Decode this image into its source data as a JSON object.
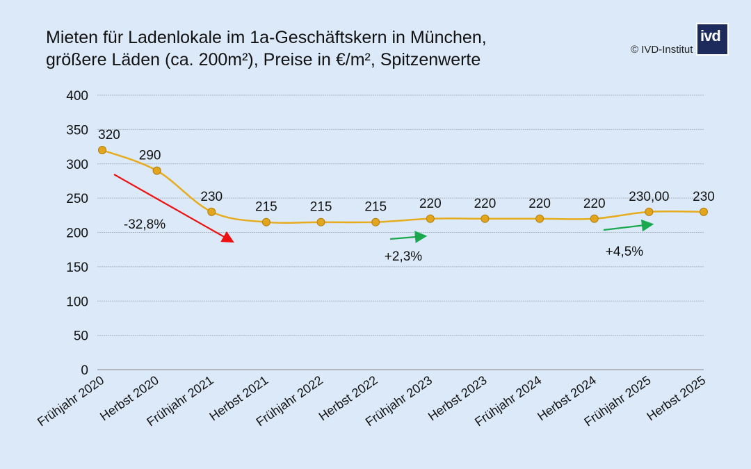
{
  "chart_data": {
    "type": "line",
    "title_line1": "Mieten für Ladenlokale im 1a-Geschäftskern in München,",
    "title_line2": "größere Läden (ca. 200m²), Preise in €/m², Spitzenwerte",
    "source": "© IVD-Institut",
    "logo_text": "ivd",
    "categories": [
      "Frühjahr 2020",
      "Herbst 2020",
      "Frühjahr 2021",
      "Herbst 2021",
      "Frühjahr 2022",
      "Herbst 2022",
      "Frühjahr 2023",
      "Herbst 2023",
      "Frühjahr 2024",
      "Herbst 2024",
      "Frühjahr 2025",
      "Herbst 2025"
    ],
    "values": [
      320,
      290,
      230,
      215,
      215,
      215,
      220,
      220,
      220,
      220,
      230,
      230
    ],
    "data_labels": [
      "320",
      "290",
      "230",
      "215",
      "215",
      "215",
      "220",
      "220",
      "220",
      "220",
      "230,00",
      "230"
    ],
    "ylim": [
      0,
      400
    ],
    "yticks": [
      0,
      50,
      100,
      150,
      200,
      250,
      300,
      350,
      400
    ],
    "grid": true,
    "line_color": "#e6ac1e",
    "marker_color": "#e3a51d",
    "annotations": [
      {
        "text": "-32,8%",
        "color": "#ee1111",
        "direction": "down",
        "from": "Frühjahr 2020",
        "to": "Herbst 2021"
      },
      {
        "text": "+2,3%",
        "color": "#1aa84f",
        "direction": "up",
        "from": "Herbst 2022",
        "to": "Frühjahr 2023"
      },
      {
        "text": "+4,5%",
        "color": "#1aa84f",
        "direction": "up",
        "from": "Herbst 2024",
        "to": "Frühjahr 2025"
      }
    ]
  }
}
